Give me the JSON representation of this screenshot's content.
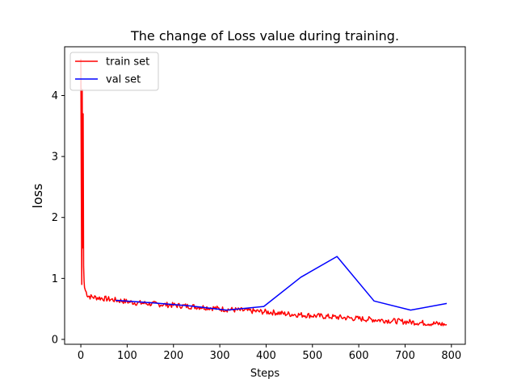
{
  "chart_data": {
    "type": "line",
    "title": "The change of Loss value during training.",
    "xlabel": "Steps",
    "ylabel": "loss",
    "xlim": [
      -35,
      830
    ],
    "ylim": [
      -0.08,
      4.8
    ],
    "xticks": [
      0,
      100,
      200,
      300,
      400,
      500,
      600,
      700,
      800
    ],
    "yticks": [
      0,
      1,
      2,
      3,
      4
    ],
    "grid": false,
    "legend_position": "top-left",
    "series": [
      {
        "name": "train set",
        "color": "#ff0000",
        "noisy": true,
        "x": [
          0,
          1,
          2,
          3,
          4,
          5,
          6,
          7,
          8,
          10,
          15,
          20,
          30,
          40,
          50,
          60,
          70,
          80,
          100,
          120,
          140,
          160,
          180,
          200,
          220,
          240,
          260,
          280,
          300,
          320,
          340,
          360,
          380,
          400,
          420,
          440,
          460,
          480,
          500,
          520,
          540,
          560,
          580,
          600,
          620,
          640,
          660,
          680,
          700,
          720,
          740,
          760,
          780,
          790
        ],
        "y": [
          4.6,
          2.5,
          0.9,
          4.1,
          1.5,
          3.7,
          1.2,
          0.95,
          0.85,
          0.8,
          0.72,
          0.7,
          0.69,
          0.68,
          0.67,
          0.66,
          0.65,
          0.64,
          0.62,
          0.6,
          0.59,
          0.58,
          0.57,
          0.56,
          0.55,
          0.54,
          0.53,
          0.52,
          0.5,
          0.49,
          0.48,
          0.47,
          0.46,
          0.45,
          0.44,
          0.42,
          0.41,
          0.4,
          0.39,
          0.38,
          0.37,
          0.36,
          0.35,
          0.34,
          0.33,
          0.32,
          0.31,
          0.3,
          0.29,
          0.28,
          0.27,
          0.26,
          0.25,
          0.24
        ]
      },
      {
        "name": "val set",
        "color": "#0000ff",
        "noisy": false,
        "x": [
          75,
          155,
          235,
          315,
          395,
          475,
          553,
          633,
          712,
          790
        ],
        "y": [
          0.64,
          0.6,
          0.55,
          0.48,
          0.54,
          1.02,
          1.36,
          0.63,
          0.48,
          0.59
        ]
      }
    ]
  }
}
